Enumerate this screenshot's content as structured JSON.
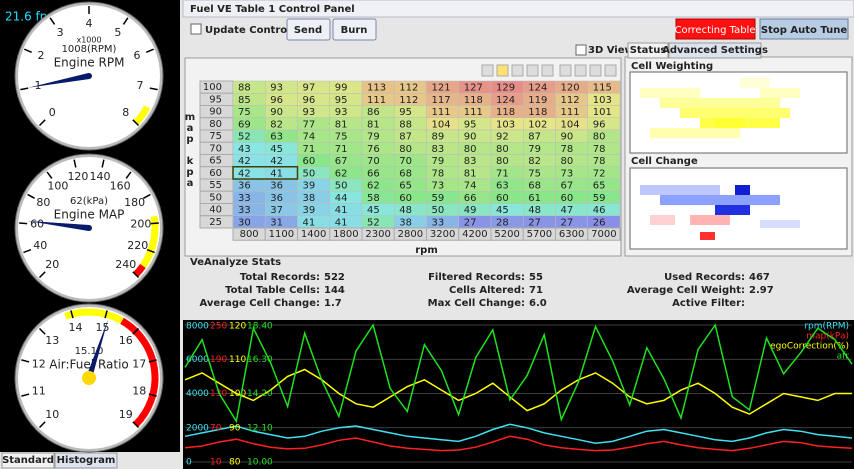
{
  "fps": "21.6 fps",
  "gauges": [
    {
      "title": "Engine RPM",
      "multiplier": "x1000",
      "readout": "1008(RPM)",
      "value": 1008,
      "min": 0,
      "max": 8000,
      "ticks": [
        {
          "value": 0,
          "label": "0"
        },
        {
          "value": 1000,
          "label": "1"
        },
        {
          "value": 2000,
          "label": "2"
        },
        {
          "value": 3000,
          "label": "3"
        },
        {
          "value": 4000,
          "label": "4"
        },
        {
          "value": 5000,
          "label": "5"
        },
        {
          "value": 6000,
          "label": "6"
        },
        {
          "value": 7000,
          "label": "7"
        },
        {
          "value": 8000,
          "label": "8"
        }
      ],
      "zones": [
        {
          "from": 7500,
          "to": 8000,
          "color": "#ffff00"
        }
      ]
    },
    {
      "title": "Engine MAP",
      "readout": "62(kPa)",
      "value": 62,
      "min": 20,
      "max": 240,
      "ticks": [
        20,
        40,
        60,
        80,
        100,
        120,
        140,
        160,
        180,
        200,
        220,
        240
      ],
      "zones": [
        {
          "from": 195,
          "to": 232,
          "color": "#ffff00"
        },
        {
          "from": 232,
          "to": 240,
          "color": "#ff0000"
        }
      ]
    },
    {
      "title": "Air:Fuel Ratio",
      "readout": "15.10",
      "value": 15.1,
      "min": 10,
      "max": 19,
      "ticks": [
        10,
        11,
        12,
        13,
        14,
        15,
        16,
        17,
        18,
        19
      ],
      "zones": [
        {
          "from": 13.8,
          "to": 15.5,
          "color": "#ffff00"
        },
        {
          "from": 15.5,
          "to": 19,
          "color": "#ff0000"
        }
      ]
    }
  ],
  "gauge_tabs": [
    "Standard",
    "Histogram"
  ],
  "panel": {
    "title": "Fuel VE Table 1 Control Panel",
    "update_controller": "Update Controller",
    "send": "Send",
    "burn": "Burn",
    "correcting": "Correcting Table",
    "stop": "Stop Auto Tune",
    "view_3d": "3D View",
    "tabs": [
      "Status",
      "Advanced Settings"
    ],
    "cell_weighting": "Cell Weighting",
    "cell_change": "Cell Change"
  },
  "ve_table": {
    "y_label": [
      "map",
      "kpa"
    ],
    "x_label": "rpm",
    "rpm": [
      800,
      1100,
      1400,
      1800,
      2300,
      2800,
      3200,
      4200,
      5200,
      5700,
      6300,
      7000
    ],
    "map": [
      100,
      95,
      90,
      80,
      75,
      70,
      65,
      60,
      55,
      50,
      40,
      25
    ],
    "rows": [
      [
        88,
        93,
        97,
        99,
        113,
        112,
        121,
        127,
        129,
        124,
        120,
        115
      ],
      [
        85,
        96,
        96,
        95,
        111,
        112,
        117,
        118,
        124,
        119,
        112,
        103
      ],
      [
        75,
        90,
        93,
        93,
        86,
        95,
        111,
        111,
        118,
        118,
        111,
        101
      ],
      [
        69,
        82,
        77,
        81,
        81,
        88,
        104,
        95,
        103,
        102,
        104,
        96
      ],
      [
        52,
        63,
        74,
        75,
        79,
        87,
        89,
        90,
        92,
        87,
        90,
        80
      ],
      [
        43,
        45,
        71,
        71,
        76,
        80,
        83,
        80,
        80,
        79,
        78,
        78
      ],
      [
        42,
        42,
        60,
        67,
        70,
        70,
        79,
        83,
        80,
        82,
        80,
        78
      ],
      [
        42,
        41,
        50,
        62,
        66,
        68,
        78,
        81,
        71,
        75,
        73,
        72
      ],
      [
        36,
        36,
        39,
        50,
        62,
        65,
        73,
        74,
        63,
        68,
        67,
        65
      ],
      [
        33,
        36,
        38,
        44,
        58,
        60,
        59,
        66,
        60,
        61,
        60,
        59
      ],
      [
        33,
        37,
        39,
        41,
        45,
        48,
        50,
        49,
        45,
        48,
        47,
        46
      ],
      [
        30,
        31,
        41,
        41,
        52,
        38,
        33,
        27,
        28,
        27,
        27,
        26
      ]
    ]
  },
  "stats": {
    "title": "VeAnalyze Stats",
    "items": [
      {
        "label": "Total Records:",
        "value": "522"
      },
      {
        "label": "Filtered Records:",
        "value": "55"
      },
      {
        "label": "Used Records:",
        "value": "467"
      },
      {
        "label": "Total Table Cells:",
        "value": "144"
      },
      {
        "label": "Cells Altered:",
        "value": "71"
      },
      {
        "label": "Average Cell Weight:",
        "value": "2.97"
      },
      {
        "label": "Average Cell Change:",
        "value": "1.7"
      },
      {
        "label": "Max Cell Change:",
        "value": "6.0"
      },
      {
        "label": "Active Filter:",
        "value": ""
      }
    ]
  },
  "strip_chart": {
    "traces": [
      {
        "name": "rpm(RPM)",
        "color": "#40e0f0",
        "ylim": [
          0,
          8000
        ],
        "ticks": [
          8000,
          6000,
          4000,
          2000,
          0
        ],
        "values": [
          1500,
          1700,
          1900,
          2100,
          1800,
          1600,
          1400,
          1500,
          1800,
          2000,
          2100,
          1900,
          1700,
          1500,
          1400,
          1300,
          1200,
          1500,
          1900,
          2200,
          2000,
          1700,
          1500,
          1300,
          1100,
          1200,
          1500,
          1800,
          1900,
          1700,
          1500,
          1300,
          1200,
          1400,
          1700,
          1900,
          1800,
          1600,
          1500,
          1400
        ]
      },
      {
        "name": "map(kPa)",
        "color": "#ff2020",
        "ylim": [
          10,
          250
        ],
        "ticks": [
          250,
          190,
          130,
          70,
          10
        ],
        "values": [
          35,
          38,
          45,
          50,
          42,
          36,
          33,
          34,
          40,
          48,
          52,
          45,
          38,
          34,
          32,
          30,
          31,
          36,
          45,
          55,
          50,
          40,
          35,
          32,
          30,
          31,
          36,
          42,
          46,
          40,
          35,
          32,
          30,
          34,
          40,
          46,
          44,
          38,
          36,
          34
        ]
      },
      {
        "name": "egoCorrection(%)",
        "color": "#ffff00",
        "ylim": [
          80,
          120
        ],
        "ticks": [
          120,
          110,
          100,
          90,
          80
        ],
        "values": [
          104,
          106,
          103,
          100,
          98,
          101,
          105,
          107,
          104,
          100,
          97,
          96,
          99,
          102,
          104,
          101,
          98,
          100,
          103,
          99,
          95,
          97,
          101,
          104,
          106,
          103,
          99,
          97,
          98,
          101,
          103,
          100,
          96,
          94,
          97,
          100,
          99,
          98,
          100,
          100
        ]
      },
      {
        "name": "afr",
        "color": "#20e020",
        "ylim": [
          10,
          18.4
        ],
        "ticks": [
          {
            "value": 18.4,
            "label": "18.40"
          },
          {
            "value": 16.3,
            "label": "16.30"
          },
          {
            "value": 14.2,
            "label": "14.20"
          },
          {
            "value": 12.1,
            "label": "12.10"
          },
          {
            "value": 10,
            "label": "10.00"
          }
        ],
        "values": [
          15.8,
          17.5,
          14.2,
          12.5,
          18.2,
          16.1,
          13.4,
          17.9,
          15.0,
          12.8,
          16.8,
          18.4,
          14.5,
          13.1,
          17.2,
          15.6,
          12.9,
          16.4,
          18.1,
          13.8,
          15.3,
          17.8,
          12.6,
          14.9,
          18.3,
          16.2,
          13.5,
          17.0,
          15.1,
          12.7,
          16.9,
          18.4,
          14.0,
          13.2,
          17.6,
          15.4,
          16.7,
          18.2,
          17.5,
          16.0
        ]
      }
    ]
  }
}
